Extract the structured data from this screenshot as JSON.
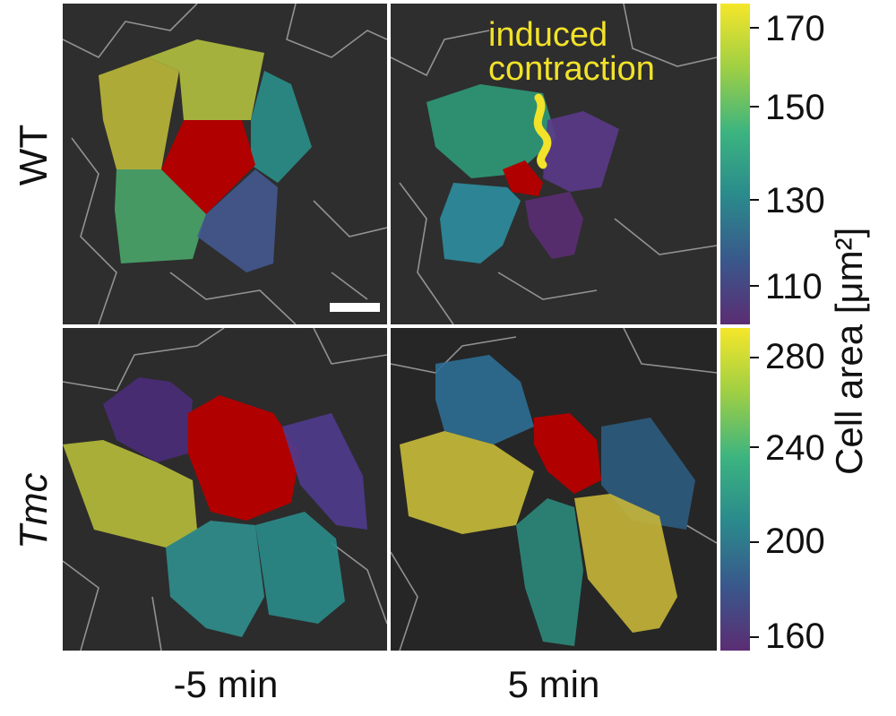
{
  "rows": [
    {
      "label": "WT"
    },
    {
      "label": "Tmc"
    }
  ],
  "columns": [
    {
      "label": "-5 min"
    },
    {
      "label": "5 min"
    }
  ],
  "annotation": {
    "line1": "induced",
    "line2": "contraction"
  },
  "colorbar_top": {
    "ticks": [
      "170",
      "150",
      "130",
      "110"
    ]
  },
  "colorbar_bottom": {
    "ticks": [
      "280",
      "240",
      "200",
      "160"
    ]
  },
  "colorbar_title": "Cell area [μm²]",
  "colors": {
    "contracted_cell": "#b00000",
    "annotation": "#f2e22a",
    "viridis_top": "#f5e62a",
    "viridis_bottom": "#5b2d73"
  }
}
